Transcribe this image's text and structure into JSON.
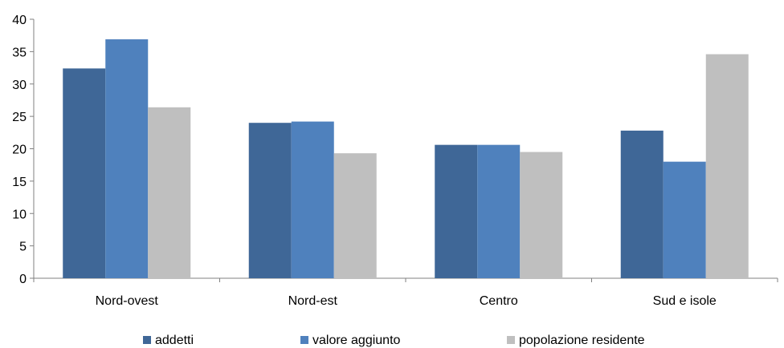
{
  "chart_data": {
    "type": "bar",
    "title": "",
    "xlabel": "",
    "ylabel": "",
    "categories": [
      "Nord-ovest",
      "Nord-est",
      "Centro",
      "Sud e isole"
    ],
    "series": [
      {
        "name": "addetti",
        "values": [
          32.4,
          24.0,
          20.6,
          22.8
        ],
        "color": "#3F6797"
      },
      {
        "name": "valore aggiunto",
        "values": [
          36.9,
          24.2,
          20.6,
          18.0
        ],
        "color": "#4F81BD"
      },
      {
        "name": "popolazione residente",
        "values": [
          26.4,
          19.3,
          19.5,
          34.6
        ],
        "color": "#BFBFBF"
      }
    ],
    "ylim": [
      0,
      40
    ],
    "yticks": [
      "0",
      "5",
      "10",
      "15",
      "20",
      "25",
      "30",
      "35",
      "40"
    ],
    "grid": false,
    "legend_position": "bottom"
  }
}
